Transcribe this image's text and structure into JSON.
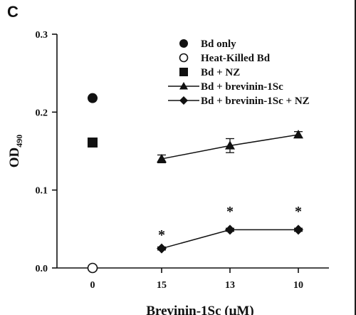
{
  "panel_label": "C",
  "chart_data": {
    "type": "scatter",
    "title": "",
    "ylabel_main": "OD",
    "ylabel_sub": "490",
    "xlabel": "Brevinin-1Sc (μM)",
    "categories": [
      "0",
      "15",
      "13",
      "10"
    ],
    "yticks": [
      "0.0",
      "0.1",
      "0.2",
      "0.3"
    ],
    "ylim": [
      0,
      0.3
    ],
    "grid": false,
    "legend_position": "top-right",
    "series": [
      {
        "name": "Bd only",
        "marker": "filled-circle",
        "line": false,
        "points": [
          {
            "x": "0",
            "y": 0.218
          }
        ]
      },
      {
        "name": "Heat-Killed Bd",
        "marker": "open-circle",
        "line": false,
        "points": [
          {
            "x": "0",
            "y": 0.0
          }
        ]
      },
      {
        "name": "Bd + NZ",
        "marker": "filled-square",
        "line": false,
        "points": [
          {
            "x": "0",
            "y": 0.161
          }
        ]
      },
      {
        "name": "Bd + brevinin-1Sc",
        "marker": "filled-triangle",
        "line": true,
        "points": [
          {
            "x": "15",
            "y": 0.14,
            "err": 0.005
          },
          {
            "x": "13",
            "y": 0.157,
            "err": 0.009
          },
          {
            "x": "10",
            "y": 0.171,
            "err": 0.004
          }
        ]
      },
      {
        "name": "Bd + brevinin-1Sc + NZ",
        "marker": "filled-diamond",
        "line": true,
        "points": [
          {
            "x": "15",
            "y": 0.025,
            "err": 0.002
          },
          {
            "x": "13",
            "y": 0.049,
            "err": 0.002
          },
          {
            "x": "10",
            "y": 0.049,
            "err": 0.002
          }
        ]
      }
    ],
    "annotations": [
      {
        "text": "*",
        "x": "15",
        "y": 0.044
      },
      {
        "text": "*",
        "x": "13",
        "y": 0.074
      },
      {
        "text": "*",
        "x": "10",
        "y": 0.074
      }
    ]
  }
}
